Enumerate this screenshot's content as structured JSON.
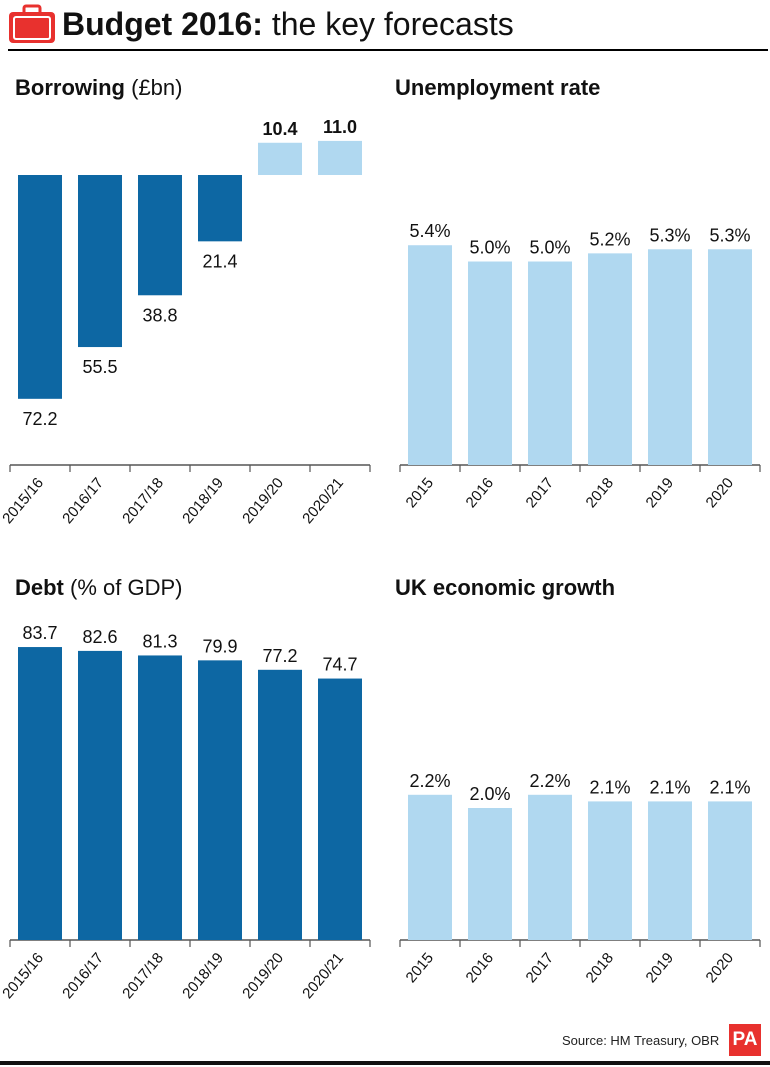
{
  "header": {
    "title_bold": "Budget 2016:",
    "title_rest": " the key forecasts"
  },
  "colors": {
    "dark_blue": "#0d67a3",
    "light_blue": "#b0d8f0",
    "axis": "#555555",
    "logo_red": "#e8312e"
  },
  "icons": {
    "brand": "briefcase-icon"
  },
  "panels": {
    "borrowing": {
      "title_bold": "Borrowing",
      "title_rest": " (£bn)"
    },
    "unemployment": {
      "title_bold": "Unemployment rate",
      "title_rest": ""
    },
    "debt": {
      "title_bold": "Debt",
      "title_rest": " (% of GDP)"
    },
    "growth": {
      "title_bold": "UK economic growth",
      "title_rest": ""
    }
  },
  "chart_data": [
    {
      "id": "borrowing",
      "type": "bar",
      "title": "Borrowing (£bn)",
      "categories": [
        "2015/16",
        "2016/17",
        "2017/18",
        "2018/19",
        "2019/20",
        "2020/21"
      ],
      "values": [
        72.2,
        55.5,
        38.8,
        21.4,
        -10.4,
        -11.0
      ],
      "labels": [
        "72.2",
        "55.5",
        "38.8",
        "21.4",
        "10.4",
        "11.0"
      ],
      "note": "Bars extend downward for borrowing; the last two (surplus) extend upward in light blue",
      "series_colors": [
        "dark_blue",
        "dark_blue",
        "dark_blue",
        "dark_blue",
        "light_blue",
        "light_blue"
      ]
    },
    {
      "id": "unemployment",
      "type": "bar",
      "title": "Unemployment rate",
      "categories": [
        "2015",
        "2016",
        "2017",
        "2018",
        "2019",
        "2020"
      ],
      "values": [
        5.4,
        5.0,
        5.0,
        5.2,
        5.3,
        5.3
      ],
      "labels": [
        "5.4%",
        "5.0%",
        "5.0%",
        "5.2%",
        "5.3%",
        "5.3%"
      ]
    },
    {
      "id": "debt",
      "type": "bar",
      "title": "Debt (% of GDP)",
      "categories": [
        "2015/16",
        "2016/17",
        "2017/18",
        "2018/19",
        "2019/20",
        "2020/21"
      ],
      "values": [
        83.7,
        82.6,
        81.3,
        79.9,
        77.2,
        74.7
      ],
      "labels": [
        "83.7",
        "82.6",
        "81.3",
        "79.9",
        "77.2",
        "74.7"
      ]
    },
    {
      "id": "growth",
      "type": "bar",
      "title": "UK economic growth",
      "categories": [
        "2015",
        "2016",
        "2017",
        "2018",
        "2019",
        "2020"
      ],
      "values": [
        2.2,
        2.0,
        2.2,
        2.1,
        2.1,
        2.1
      ],
      "labels": [
        "2.2%",
        "2.0%",
        "2.2%",
        "2.1%",
        "2.1%",
        "2.1%"
      ]
    }
  ],
  "footer": {
    "source": "Source: HM Treasury, OBR",
    "logo_text": "PA"
  }
}
